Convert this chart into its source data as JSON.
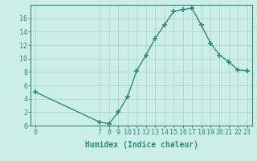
{
  "x": [
    0,
    7,
    8,
    9,
    10,
    11,
    12,
    13,
    14,
    15,
    16,
    17,
    18,
    19,
    20,
    21,
    22,
    23
  ],
  "y": [
    5,
    0.5,
    0.3,
    2,
    4.3,
    8.2,
    10.5,
    13,
    15,
    17,
    17.3,
    17.5,
    15,
    12.3,
    10.5,
    9.5,
    8.3,
    8.2
  ],
  "line_color": "#2e8b7a",
  "marker": "+",
  "marker_size": 4,
  "background_color": "#cceee8",
  "grid_color": "#b0d4ce",
  "xlabel": "Humidex (Indice chaleur)",
  "ylim": [
    0,
    18
  ],
  "xlim": [
    -0.5,
    23.5
  ],
  "xticks": [
    0,
    7,
    8,
    9,
    10,
    11,
    12,
    13,
    14,
    15,
    16,
    17,
    18,
    19,
    20,
    21,
    22,
    23
  ],
  "yticks": [
    0,
    2,
    4,
    6,
    8,
    10,
    12,
    14,
    16
  ],
  "xlabel_fontsize": 7,
  "tick_fontsize": 6
}
